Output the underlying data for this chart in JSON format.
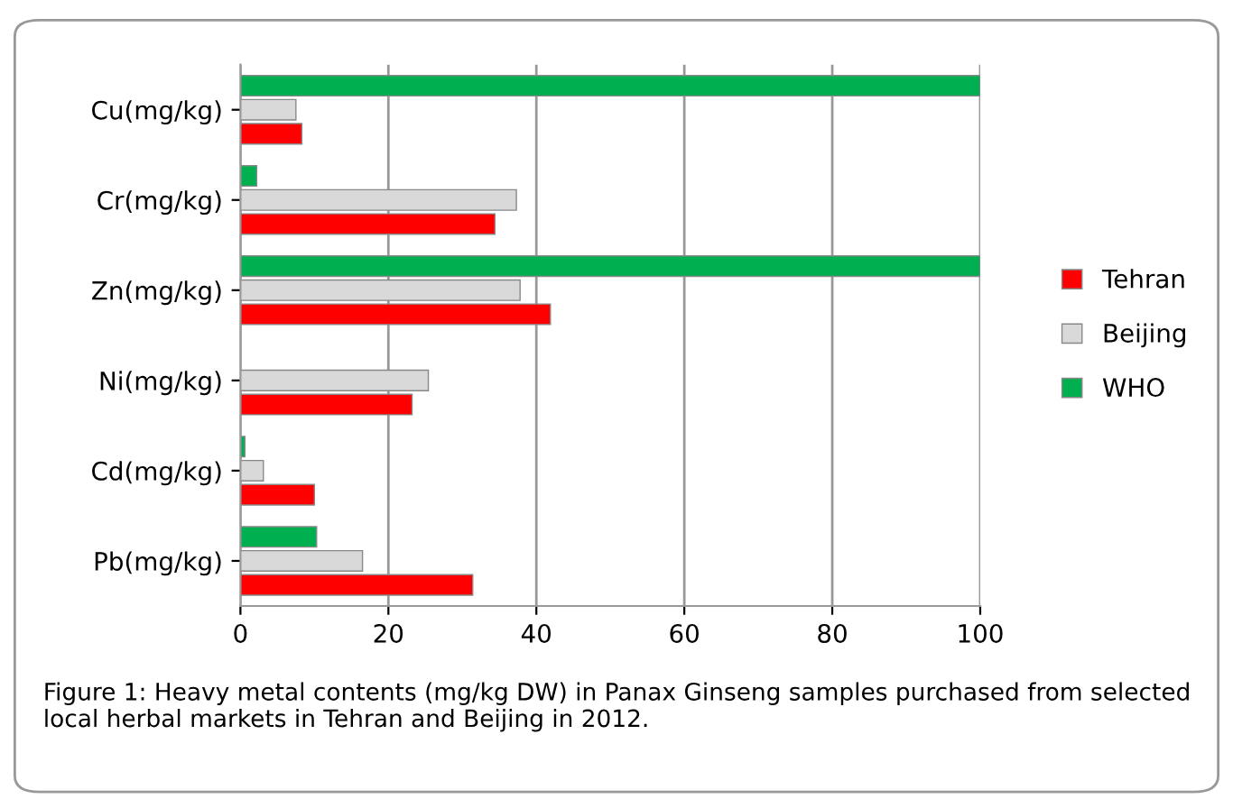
{
  "chart_data": {
    "type": "bar",
    "orientation": "horizontal",
    "categories": [
      "Cu(mg/kg)",
      "Cr(mg/kg)",
      "Zn(mg/kg)",
      "Ni(mg/kg)",
      "Cd(mg/kg)",
      "Pb(mg/kg)"
    ],
    "series": [
      {
        "name": "WHO",
        "color": "#00b050",
        "values": [
          100,
          2.2,
          100,
          null,
          0.6,
          10.3
        ]
      },
      {
        "name": "Beijing",
        "color": "#d9d9d9",
        "values": [
          7.5,
          37.3,
          37.8,
          25.4,
          3.1,
          16.5
        ]
      },
      {
        "name": "Tehran",
        "color": "#ff0000",
        "values": [
          8.3,
          34.4,
          41.9,
          23.2,
          10,
          31.4
        ]
      }
    ],
    "xlim": [
      0,
      100
    ],
    "xticks": [
      0,
      20,
      40,
      60,
      80,
      100
    ],
    "grid": "x",
    "legend": "right",
    "annotations": [
      "Figure 1: Heavy metal contents (mg/kg DW) in Panax Ginseng samples purchased from selected local herbal markets in Tehran and Beijing in 2012."
    ]
  }
}
